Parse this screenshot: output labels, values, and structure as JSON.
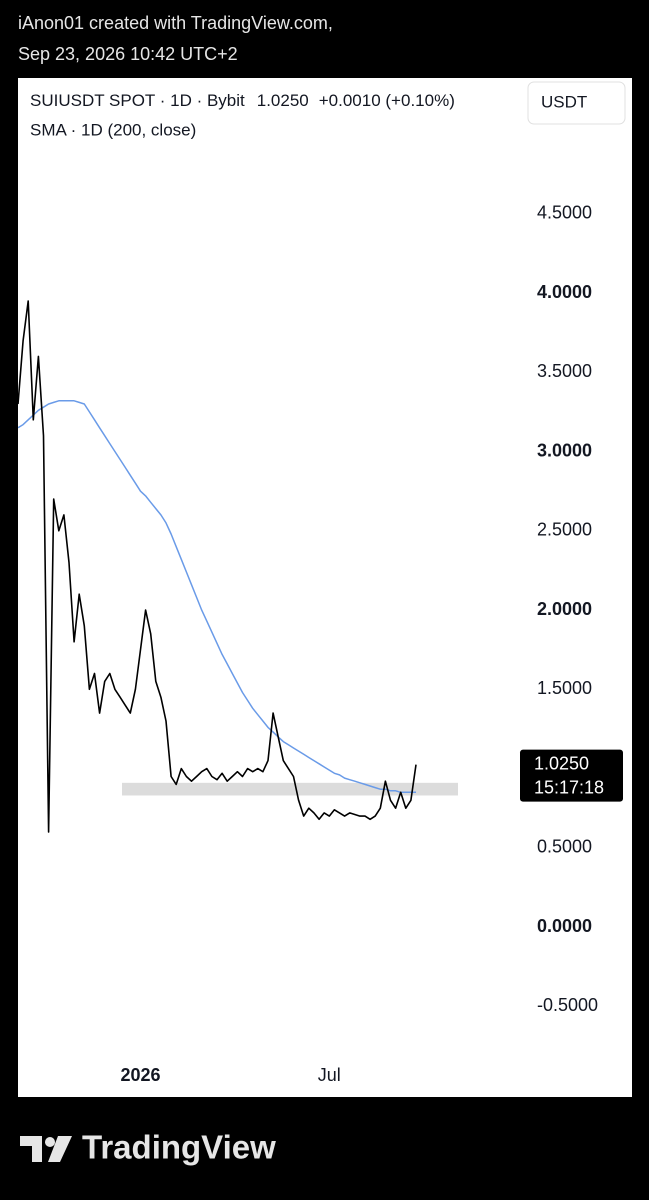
{
  "header": {
    "line1": "iAnon01 created with TradingView.com,",
    "line2": "Sep 23, 2026 10:42 UTC+2"
  },
  "footer": "TradingView",
  "chart_data": {
    "type": "line",
    "currency_button": "USDT",
    "legend_price": "1.0250",
    "legend_change": "+0.0010 (+0.10%)",
    "last_price_label": {
      "value": 1.025,
      "label": "1.0250"
    },
    "countdown": "15:17:18",
    "zone": [
      0.83,
      0.91
    ],
    "ylim": [
      -0.826,
      5.344
    ],
    "yticks": [
      {
        "value": 4.5,
        "label": "4.5000"
      },
      {
        "value": 4,
        "label": "4.0000"
      },
      {
        "value": 3.5,
        "label": "3.5000"
      },
      {
        "value": 3,
        "label": "3.0000"
      },
      {
        "value": 2.5,
        "label": "2.5000"
      },
      {
        "value": 2,
        "label": "2.0000"
      },
      {
        "value": 1.5,
        "label": "1.5000"
      },
      {
        "value": 0.5,
        "label": "0.5000"
      },
      {
        "value": 0,
        "label": "0.0000"
      },
      {
        "value": -0.5,
        "label": "-0.5000"
      }
    ],
    "grid": false,
    "categories": [
      null,
      null,
      null,
      null,
      null,
      null,
      null,
      null,
      null,
      null,
      null,
      null,
      null,
      null,
      null,
      null,
      null,
      null,
      null,
      null,
      null,
      null,
      null,
      null,
      "2026",
      null,
      null,
      null,
      null,
      null,
      null,
      null,
      null,
      null,
      null,
      null,
      null,
      null,
      null,
      null,
      null,
      null,
      null,
      null,
      null,
      null,
      null,
      null,
      null,
      null,
      null,
      null,
      null,
      null,
      null,
      null,
      null,
      null,
      null,
      null,
      null,
      "Jul",
      null,
      null,
      null,
      null,
      null,
      null,
      null,
      null,
      null,
      null,
      null,
      null,
      null,
      null,
      null,
      null,
      null
    ],
    "series": [
      {
        "name": "SUIUSDT SPOT · 1D · Bybit",
        "color": "#000000",
        "values": [
          3.3,
          3.7,
          3.95,
          3.2,
          3.6,
          3.1,
          0.6,
          2.7,
          2.5,
          2.6,
          2.3,
          1.8,
          2.1,
          1.9,
          1.5,
          1.6,
          1.35,
          1.55,
          1.6,
          1.5,
          1.45,
          1.4,
          1.35,
          1.5,
          1.75,
          2.0,
          1.85,
          1.55,
          1.45,
          1.3,
          0.95,
          0.9,
          1.0,
          0.95,
          0.92,
          0.95,
          0.98,
          1.0,
          0.95,
          0.93,
          0.97,
          0.92,
          0.95,
          0.98,
          0.95,
          1.0,
          0.98,
          1.0,
          0.98,
          1.05,
          1.35,
          1.2,
          1.05,
          1.0,
          0.95,
          0.8,
          0.7,
          0.75,
          0.72,
          0.68,
          0.72,
          0.7,
          0.74,
          0.72,
          0.7,
          0.72,
          0.71,
          0.7,
          0.7,
          0.68,
          0.7,
          0.75,
          0.92,
          0.8,
          0.75,
          0.85,
          0.75,
          0.8,
          1.025
        ]
      },
      {
        "name": "SMA · 1D (200, close)",
        "color": "#6a9be8",
        "values": [
          3.15,
          3.17,
          3.2,
          3.23,
          3.26,
          3.28,
          3.3,
          3.31,
          3.32,
          3.32,
          3.32,
          3.32,
          3.31,
          3.3,
          3.25,
          3.2,
          3.15,
          3.1,
          3.05,
          3.0,
          2.95,
          2.9,
          2.85,
          2.8,
          2.75,
          2.72,
          2.68,
          2.64,
          2.6,
          2.55,
          2.48,
          2.4,
          2.32,
          2.24,
          2.16,
          2.08,
          2.0,
          1.93,
          1.86,
          1.79,
          1.72,
          1.66,
          1.6,
          1.54,
          1.48,
          1.43,
          1.38,
          1.34,
          1.3,
          1.26,
          1.23,
          1.2,
          1.17,
          1.15,
          1.13,
          1.11,
          1.09,
          1.07,
          1.05,
          1.03,
          1.01,
          0.99,
          0.97,
          0.96,
          0.94,
          0.93,
          0.92,
          0.91,
          0.9,
          0.89,
          0.88,
          0.87,
          0.87,
          0.86,
          0.86,
          0.85,
          0.85,
          0.85,
          0.85
        ]
      }
    ]
  }
}
